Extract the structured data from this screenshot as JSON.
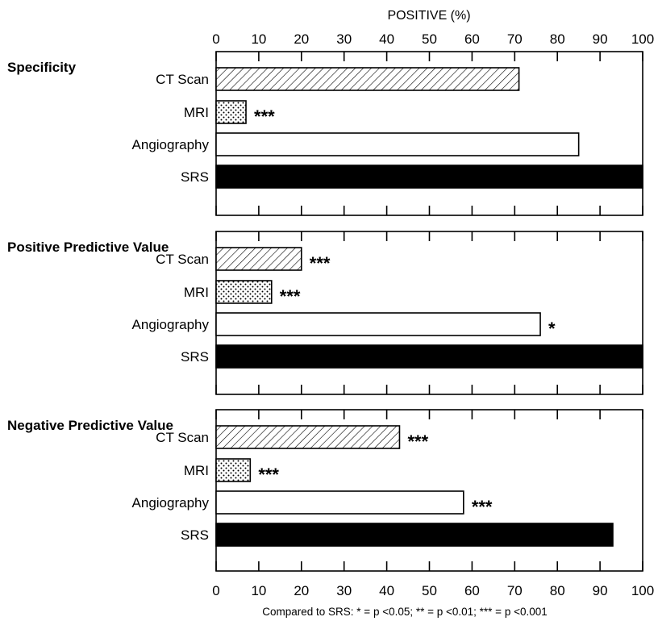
{
  "chart_data": {
    "type": "bar",
    "orientation": "horizontal",
    "xlabel": "POSITIVE (%)",
    "xlim": [
      0,
      100
    ],
    "xticks": [
      0,
      10,
      20,
      30,
      40,
      50,
      60,
      70,
      80,
      90,
      100
    ],
    "categories": [
      "CT Scan",
      "MRI",
      "Angiography",
      "SRS"
    ],
    "fills": {
      "CT Scan": "diagonal-hatch",
      "MRI": "dotted",
      "Angiography": "white",
      "SRS": "solid-black"
    },
    "panels": [
      {
        "title": "Specificity",
        "values": [
          71,
          7,
          85,
          100
        ],
        "significance": [
          "",
          "***",
          "",
          ""
        ]
      },
      {
        "title": "Positive Predictive Value",
        "values": [
          20,
          13,
          76,
          100
        ],
        "significance": [
          "***",
          "***",
          "*",
          ""
        ]
      },
      {
        "title": "Negative Predictive Value",
        "values": [
          43,
          8,
          58,
          93
        ],
        "significance": [
          "***",
          "***",
          "***",
          ""
        ]
      }
    ],
    "footnote": "Compared to SRS: * = p <0.05; ** = p <0.01; *** = p <0.001"
  }
}
